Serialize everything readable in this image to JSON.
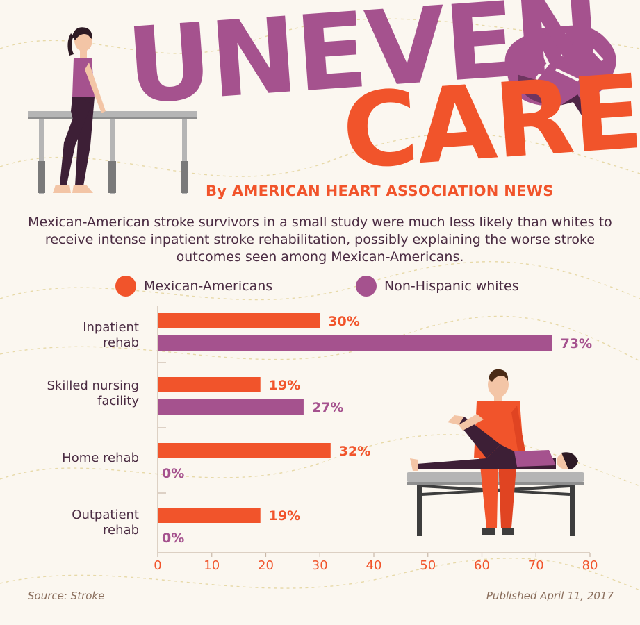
{
  "title": {
    "line1": "UNEVEN",
    "line2": "CARE",
    "byline": "By AMERICAN HEART ASSOCIATION NEWS",
    "description": "Mexican-American stroke survivors in a small study were much less likely than whites to receive intense inpatient stroke rehabilitation, possibly explaining the worse stroke outcomes seen among Mexican-Americans."
  },
  "colors": {
    "mexican_americans": "#f1542b",
    "non_hispanic_whites": "#a5528e",
    "text_dark": "#4a2b42",
    "background": "#fbf7f0"
  },
  "chart_data": {
    "type": "bar",
    "orientation": "horizontal",
    "categories": [
      [
        "Inpatient",
        "rehab"
      ],
      [
        "Skilled nursing",
        "facility"
      ],
      [
        "Home rehab"
      ],
      [
        "Outpatient",
        "rehab"
      ]
    ],
    "series": [
      {
        "name": "Mexican-Americans",
        "values": [
          30,
          19,
          32,
          19
        ],
        "labels": [
          "30%",
          "19%",
          "32%",
          "19%"
        ]
      },
      {
        "name": "Non-Hispanic whites",
        "values": [
          73,
          27,
          0,
          0
        ],
        "labels": [
          "73%",
          "27%",
          "0%",
          "0%"
        ]
      }
    ],
    "xlim": [
      0,
      80
    ],
    "xticks": [
      "0",
      "10",
      "20",
      "30",
      "40",
      "50",
      "60",
      "70",
      "80"
    ],
    "legend_position": "top",
    "grid": false
  },
  "footer": {
    "source": "Source: Stroke",
    "published": "Published April 11, 2017"
  },
  "illustrations": [
    "woman-parallel-bars",
    "brain-icon",
    "therapist-patient-table"
  ]
}
